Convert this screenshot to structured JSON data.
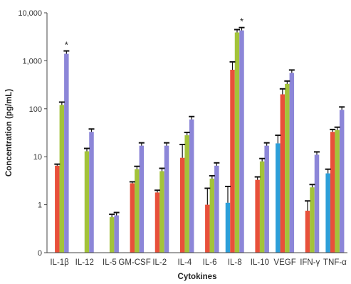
{
  "chart_data": {
    "type": "bar",
    "xlabel": "Cytokines",
    "ylabel": "Concentration (pg/mL)",
    "yscale": "log",
    "ylim": [
      0.1,
      10000
    ],
    "y_ticks": [
      {
        "value": 0.1,
        "label": "0"
      },
      {
        "value": 1,
        "label": "1"
      },
      {
        "value": 10,
        "label": "10"
      },
      {
        "value": 100,
        "label": "100"
      },
      {
        "value": 1000,
        "label": "1,000"
      },
      {
        "value": 10000,
        "label": "10,000"
      }
    ],
    "grid": false,
    "legend": "none",
    "categories": [
      "IL-1β",
      "IL-12",
      "IL-5",
      "GM-CSF",
      "IL-2",
      "IL-4",
      "IL-6",
      "IL-8",
      "IL-10",
      "VEGF",
      "IFN-γ",
      "TNF-α"
    ],
    "series": [
      {
        "color": "#2d9fd9",
        "values": [
          null,
          null,
          null,
          null,
          null,
          null,
          null,
          1.1,
          null,
          19,
          null,
          4.5
        ],
        "errors": [
          null,
          null,
          null,
          null,
          null,
          null,
          null,
          2.4,
          null,
          28,
          null,
          5.5
        ]
      },
      {
        "color": "#e8503a",
        "values": [
          6.5,
          null,
          null,
          2.8,
          1.8,
          9.5,
          1.0,
          650,
          3.3,
          200,
          0.75,
          33
        ],
        "errors": [
          7.0,
          null,
          null,
          3.0,
          2.0,
          18,
          2.2,
          950,
          3.8,
          260,
          1.2,
          37
        ]
      },
      {
        "color": "#a3c33a",
        "values": [
          120,
          13,
          0.55,
          5.5,
          5.0,
          28,
          3.5,
          3900,
          8.0,
          330,
          2.3,
          36
        ]
      },
      {
        "color": "#8c86d8",
        "values": [
          1400,
          33,
          0.6,
          17,
          17,
          60,
          6.5,
          4300,
          17,
          560,
          11,
          95
        ]
      }
    ],
    "error_caps": [
      [
        null,
        null,
        null,
        null
      ],
      [
        null,
        null,
        null,
        null
      ],
      [
        null,
        null,
        null,
        null
      ]
    ],
    "annotations": [
      {
        "category": "IL-1β",
        "text": "*"
      },
      {
        "category": "IL-8",
        "text": "*"
      }
    ]
  }
}
